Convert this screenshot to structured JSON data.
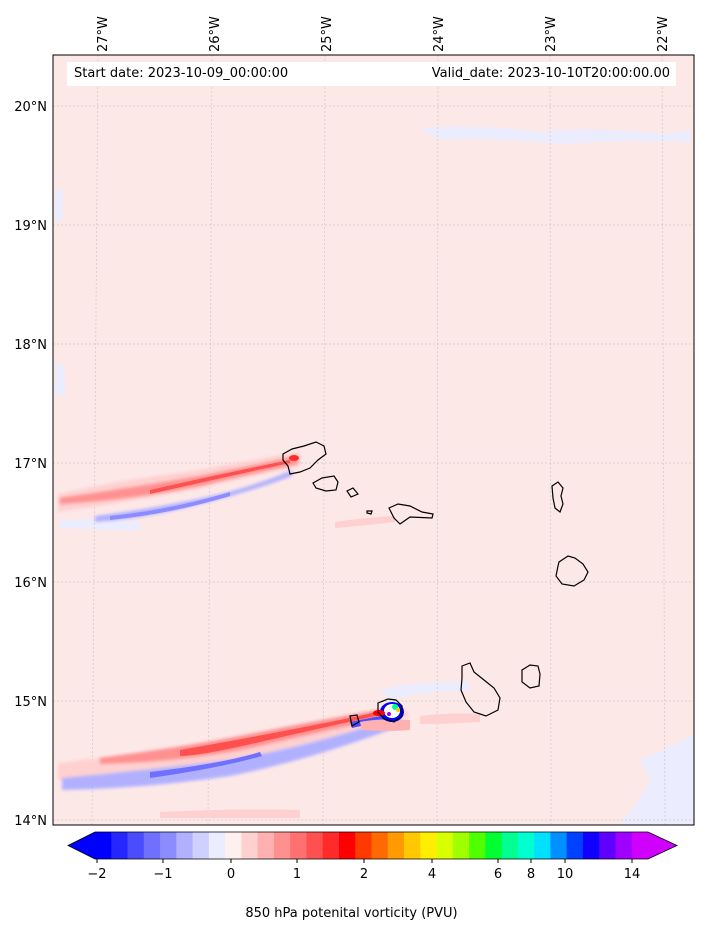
{
  "map": {
    "start_date_text": "Start date: 2023-10-09_00:00:00",
    "valid_date_text": "Valid_date: 2023-10-10T20:00:00.00",
    "lon_labels": [
      "27°W",
      "26°W",
      "25°W",
      "24°W",
      "23°W",
      "22°W"
    ],
    "lat_labels": [
      "20°N",
      "19°N",
      "18°N",
      "17°N",
      "16°N",
      "15°N",
      "14°N"
    ],
    "background_color": "#fde8e8",
    "coastline_color": "#000000"
  },
  "colorbar": {
    "label": "850 hPa potenital vorticity (PVU)",
    "ticks": [
      "−2",
      "−1",
      "0",
      "1",
      "2",
      "4",
      "6",
      "8",
      "10",
      "14"
    ],
    "colors": [
      "#0000ff",
      "#2626ff",
      "#4c4cff",
      "#7070ff",
      "#8c8cff",
      "#b0b0ff",
      "#d0d0ff",
      "#ececff",
      "#fff0f0",
      "#ffd0d0",
      "#ffb0b0",
      "#ff9090",
      "#ff7070",
      "#ff5050",
      "#ff2a2a",
      "#ff0000",
      "#ff3a00",
      "#ff6a00",
      "#ff9a00",
      "#ffc800",
      "#ffee00",
      "#d8ff00",
      "#a0ff00",
      "#50ff00",
      "#00ff30",
      "#00ff90",
      "#00ffd0",
      "#00e0ff",
      "#0090ff",
      "#0040ff",
      "#1000ff",
      "#6000ff",
      "#a000ff",
      "#d000ff"
    ]
  }
}
